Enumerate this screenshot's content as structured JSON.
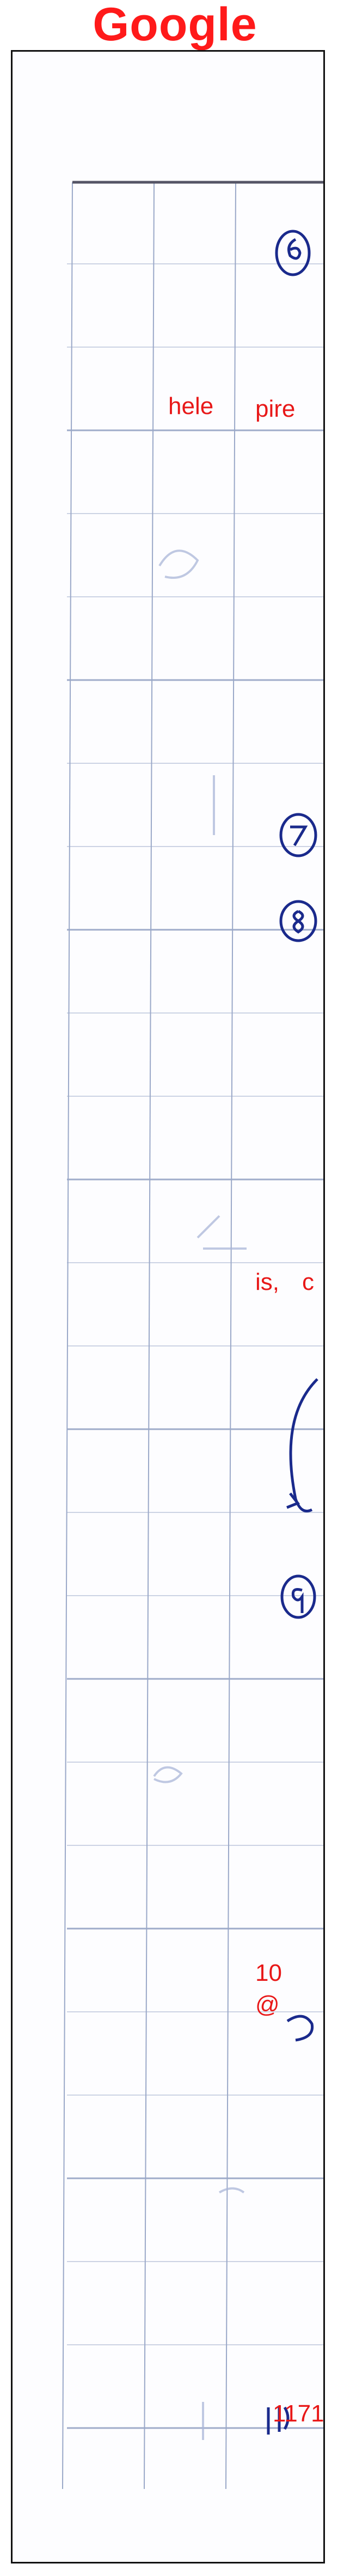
{
  "header": {
    "brand": "Google"
  },
  "labels": {
    "word_hele": "hele",
    "word_pire": "pire",
    "word_is": "is,",
    "word_c": "c",
    "number_10": "10",
    "symbol_at": "@",
    "number_1171": "1171"
  },
  "circled_marks": [
    "6",
    "7",
    "8",
    "9"
  ],
  "colors": {
    "brand": "#ff1a1a",
    "labels": "#e81818",
    "ink": "#1a2a8c",
    "grid": "#9aa8c8",
    "frame": "#111111"
  }
}
